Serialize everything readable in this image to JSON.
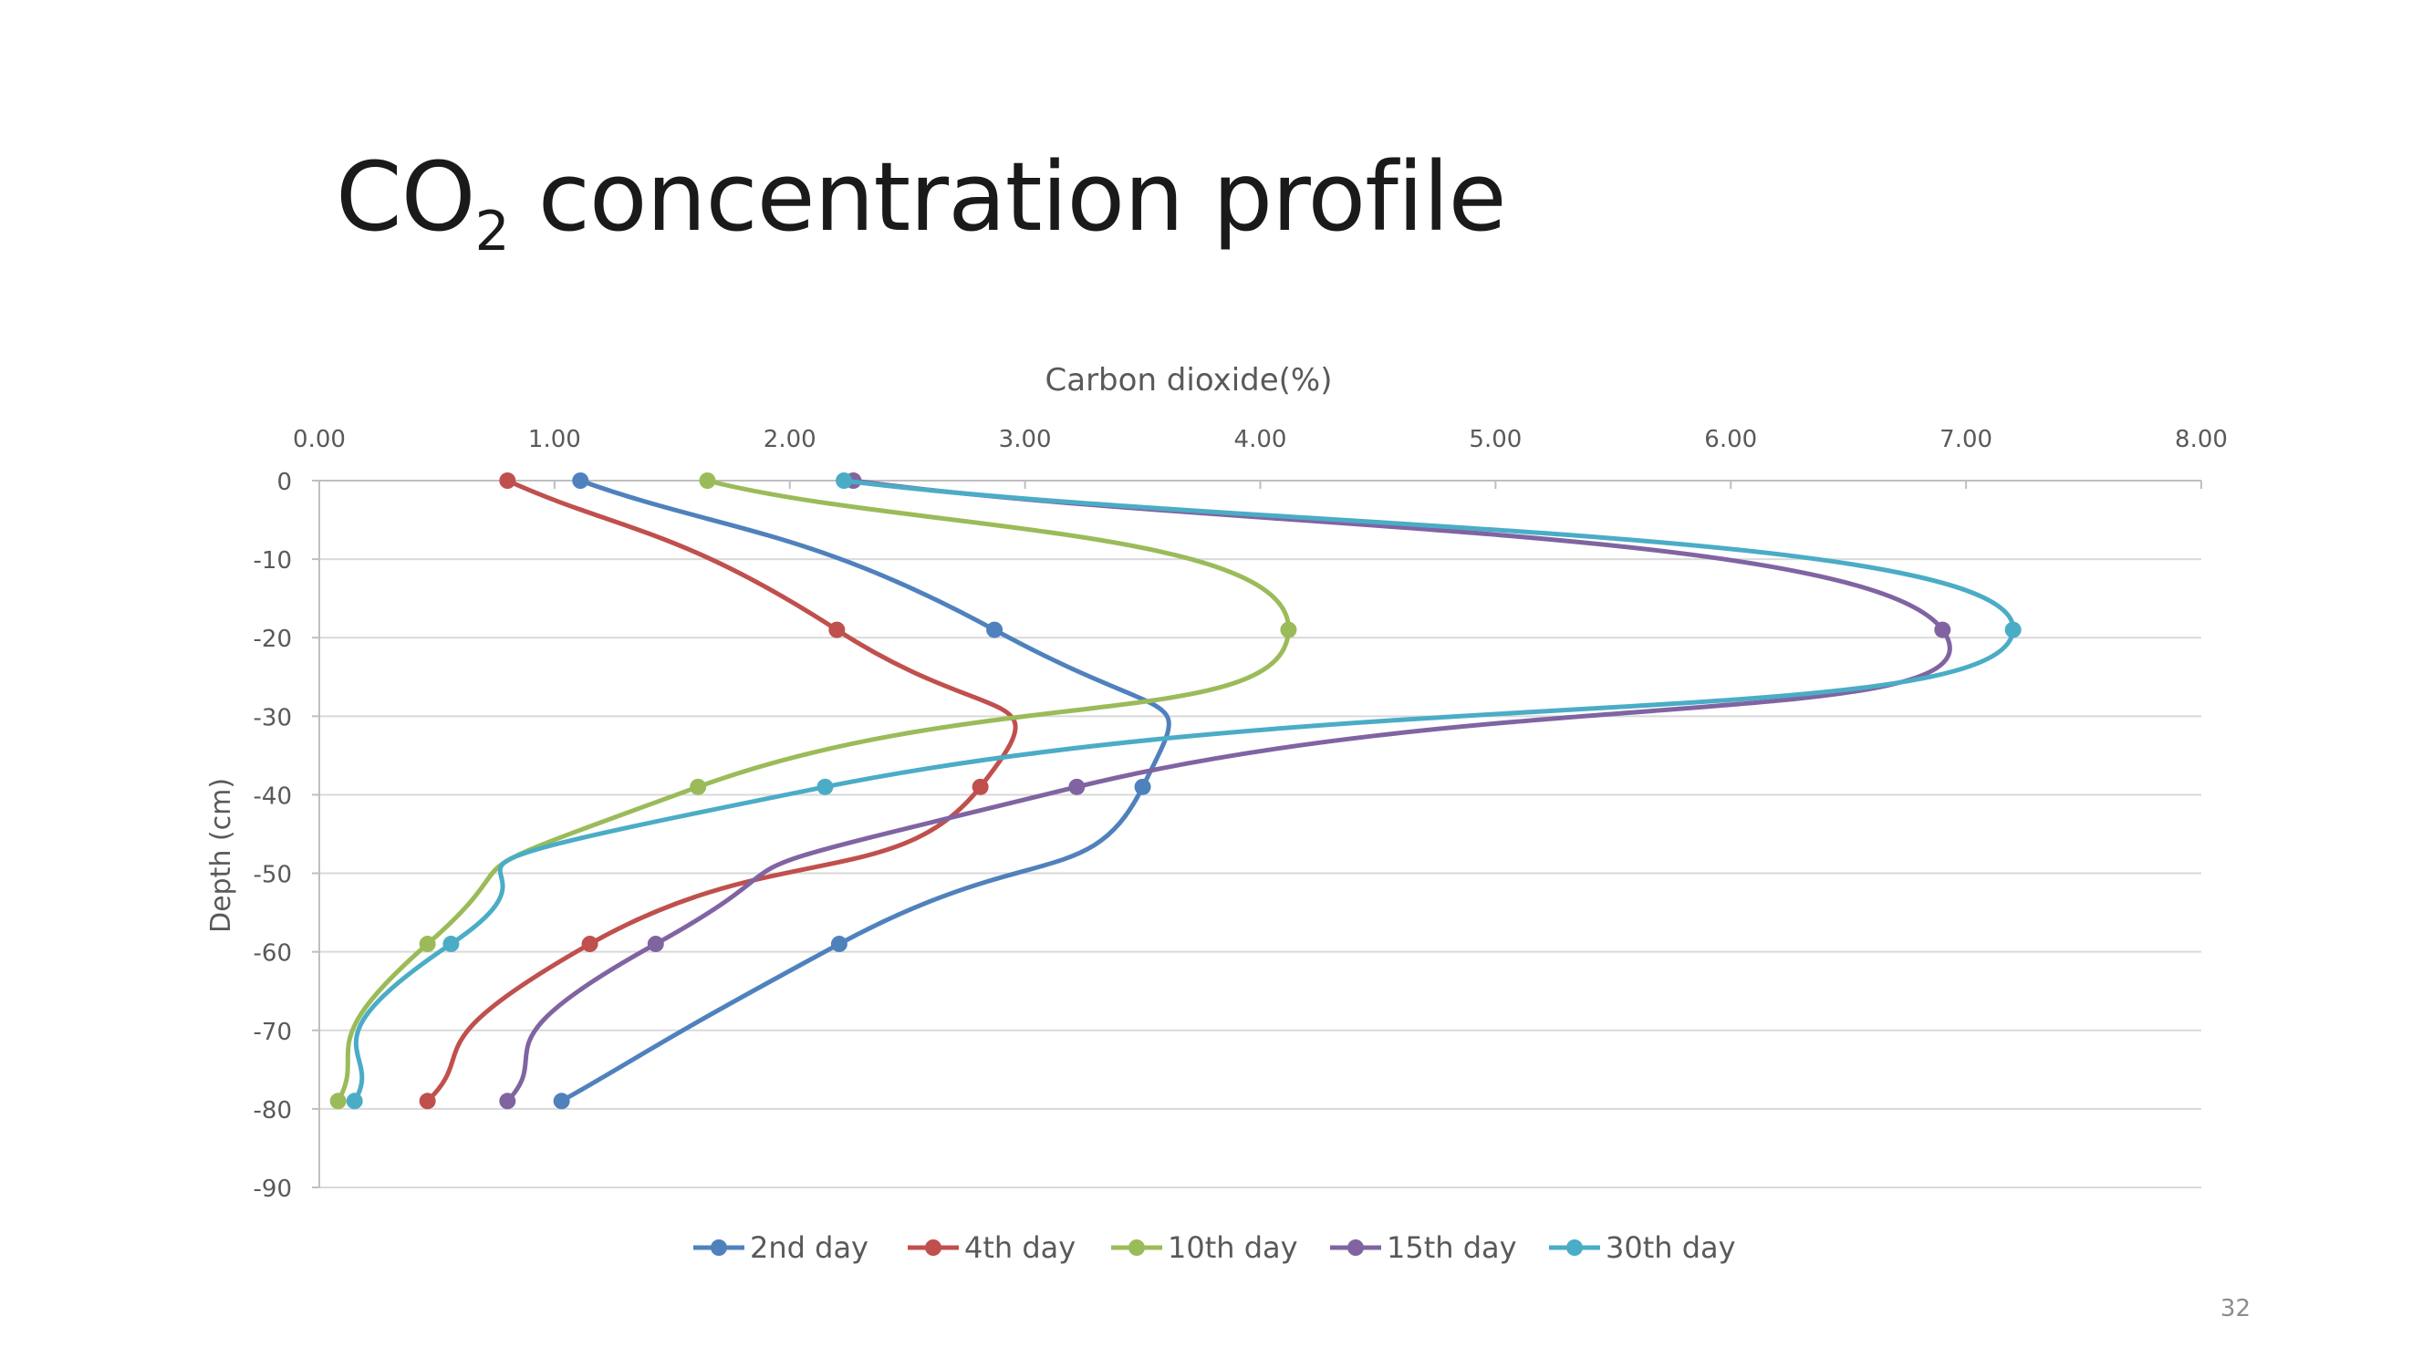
{
  "slide": {
    "title_main": "CO",
    "title_sub": "2",
    "title_rest": " concentration profile",
    "page_number": "32"
  },
  "chart_data": {
    "type": "line",
    "title": "",
    "xlabel": "Carbon dioxide(%)",
    "ylabel": "Depth (cm)",
    "x_axis_position": "top",
    "xlim": [
      0,
      8
    ],
    "ylim": [
      -90,
      0
    ],
    "x_ticks": [
      "0.00",
      "1.00",
      "2.00",
      "3.00",
      "4.00",
      "5.00",
      "6.00",
      "7.00",
      "8.00"
    ],
    "y_ticks": [
      "0",
      "-10",
      "-20",
      "-30",
      "-40",
      "-50",
      "-60",
      "-70",
      "-80",
      "-90"
    ],
    "grid": "horizontal",
    "smooth": true,
    "legend_position": "bottom",
    "depths": [
      0,
      -19,
      -39,
      -59,
      -79
    ],
    "series": [
      {
        "name": "2nd day",
        "color": "#4F81BD",
        "x": [
          1.11,
          2.87,
          3.5,
          2.21,
          1.03
        ]
      },
      {
        "name": "4th day",
        "color": "#C0504D",
        "x": [
          0.8,
          2.2,
          2.81,
          1.15,
          0.46
        ]
      },
      {
        "name": "10th day",
        "color": "#9BBB59",
        "x": [
          1.65,
          4.12,
          1.61,
          0.46,
          0.08
        ]
      },
      {
        "name": "15th day",
        "color": "#8064A2",
        "x": [
          2.27,
          6.9,
          3.22,
          1.43,
          0.8
        ]
      },
      {
        "name": "30th day",
        "color": "#4BACC6",
        "x": [
          2.23,
          7.2,
          2.15,
          0.56,
          0.15
        ]
      }
    ]
  }
}
